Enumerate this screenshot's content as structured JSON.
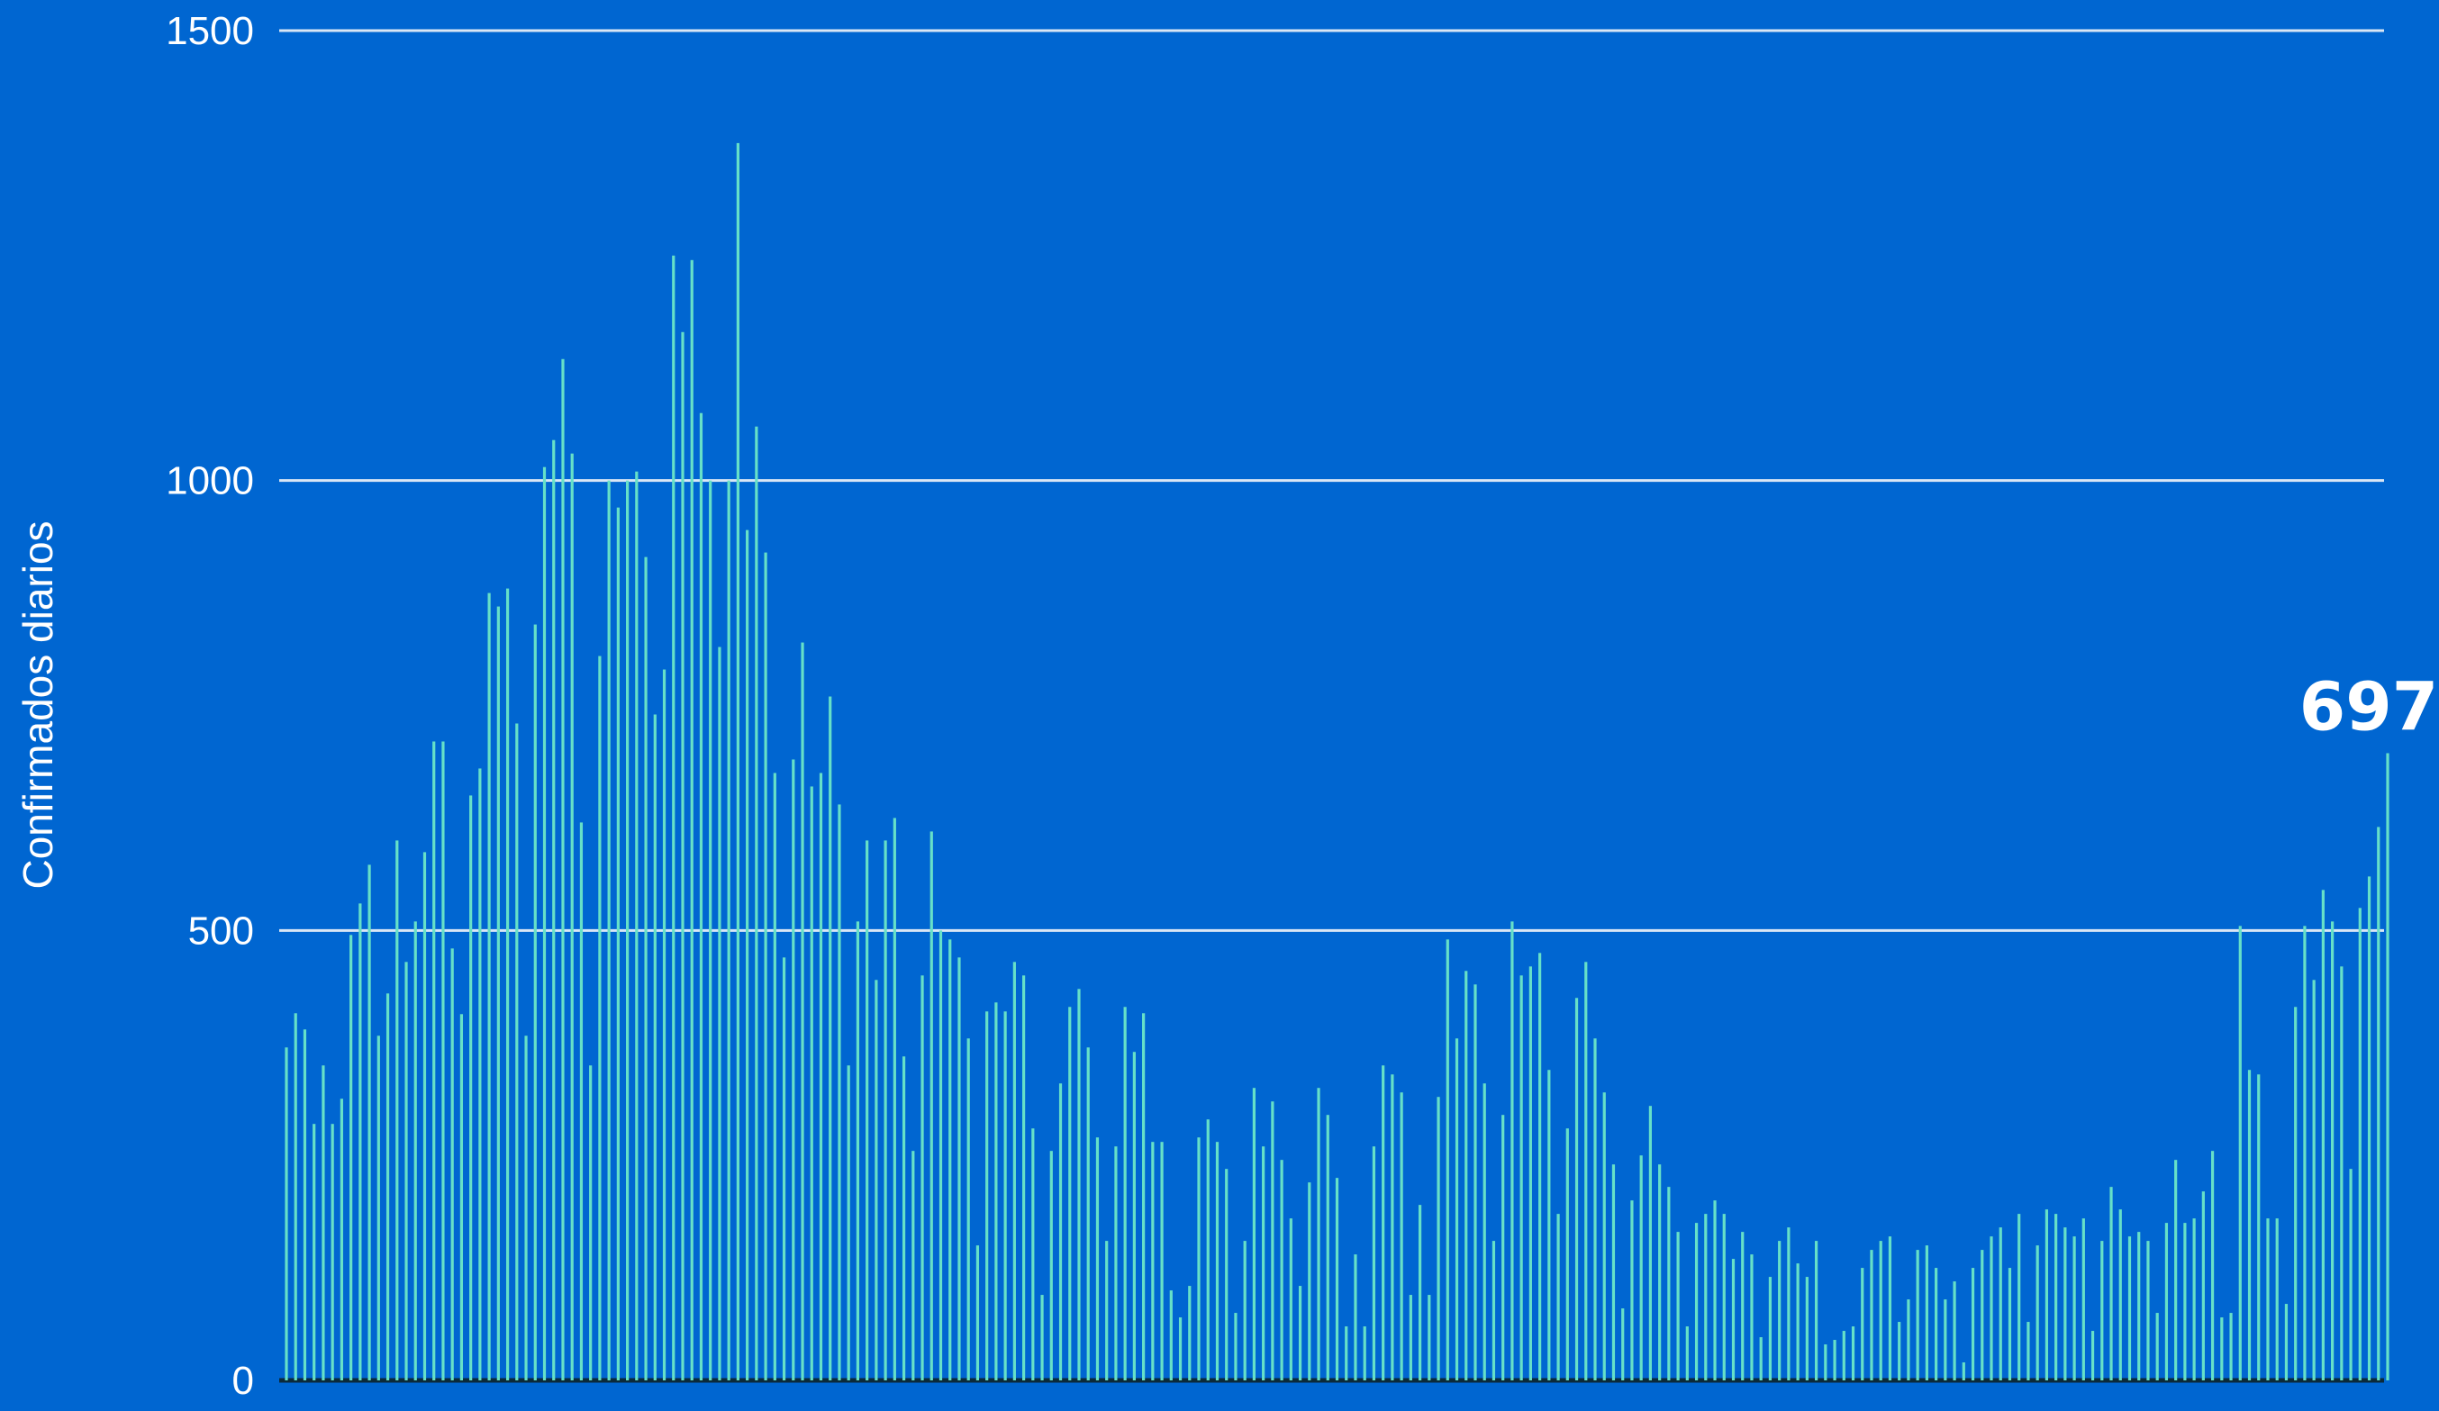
{
  "colors": {
    "background": "#0066d1",
    "bar": "#66e0c8",
    "gridline": "#d9e6f5",
    "text": "#ffffff"
  },
  "chart_data": {
    "type": "bar",
    "title": "",
    "xlabel": "",
    "ylabel": "Confirmados diarios",
    "ylim": [
      0,
      1500
    ],
    "yticks": [
      0,
      500,
      1000,
      1500
    ],
    "grid": true,
    "last_value_label": "697",
    "values": [
      370,
      408,
      390,
      285,
      350,
      285,
      313,
      495,
      530,
      573,
      383,
      430,
      600,
      465,
      510,
      587,
      710,
      710,
      480,
      407,
      650,
      680,
      875,
      860,
      880,
      730,
      383,
      840,
      1015,
      1045,
      1135,
      1030,
      620,
      350,
      805,
      1000,
      970,
      1000,
      1010,
      915,
      740,
      790,
      1250,
      1165,
      1245,
      1075,
      1000,
      815,
      1000,
      1375,
      945,
      1060,
      920,
      675,
      470,
      690,
      820,
      660,
      675,
      760,
      640,
      350,
      510,
      600,
      445,
      600,
      625,
      360,
      255,
      450,
      610,
      500,
      490,
      470,
      380,
      150,
      410,
      420,
      410,
      465,
      450,
      280,
      95,
      255,
      330,
      415,
      435,
      370,
      270,
      155,
      260,
      415,
      365,
      408,
      265,
      265,
      100,
      70,
      105,
      270,
      290,
      265,
      235,
      75,
      155,
      325,
      260,
      310,
      245,
      180,
      105,
      220,
      325,
      295,
      225,
      60,
      140,
      60,
      260,
      350,
      340,
      320,
      95,
      195,
      95,
      315,
      490,
      380,
      455,
      440,
      330,
      155,
      295,
      510,
      450,
      460,
      475,
      345,
      185,
      280,
      425,
      465,
      380,
      320,
      240,
      80,
      200,
      250,
      305,
      240,
      215,
      165,
      60,
      175,
      185,
      200,
      185,
      135,
      165,
      140,
      48,
      115,
      155,
      170,
      130,
      115,
      155,
      40,
      45,
      55,
      60,
      125,
      145,
      155,
      160,
      65,
      90,
      145,
      150,
      125,
      90,
      110,
      20,
      125,
      145,
      160,
      170,
      125,
      185,
      65,
      150,
      190,
      185,
      170,
      160,
      180,
      55,
      155,
      215,
      190,
      160,
      165,
      155,
      75,
      175,
      245,
      175,
      180,
      210,
      255,
      70,
      75,
      505,
      345,
      340,
      180,
      180,
      85,
      415,
      505,
      445,
      545,
      510,
      460,
      235,
      525,
      560,
      615,
      697
    ]
  }
}
